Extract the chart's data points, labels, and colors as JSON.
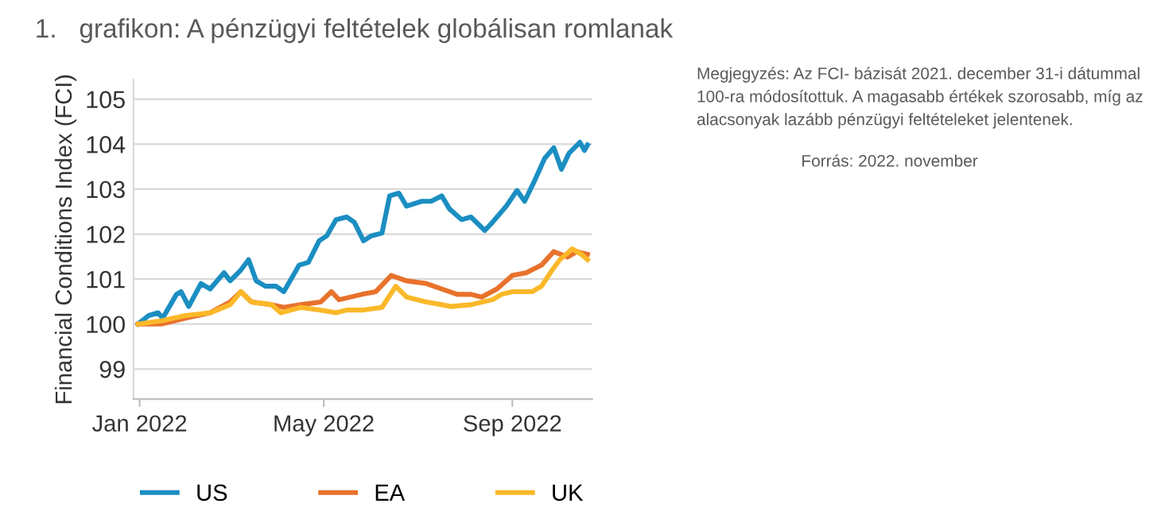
{
  "chart_data": {
    "type": "line",
    "title": "1.   grafikon: A pénzügyi feltételek globálisan romlanak",
    "ylabel": "Financial Conditions Index (FCI)",
    "annotations": [
      "Megjegyzés: Az FCI- bázisát 2021. december 31-i dátummal 100-ra módosítottuk. A magasabb értékek szorosabb, míg az alacsonyak lazább pénzügyi feltételeket jelentenek.",
      "Forrás: 2022. november"
    ],
    "xlim": [
      "2021-12-28",
      "2022-10-23"
    ],
    "xticks": [
      {
        "value": "2022-01-01",
        "label": "Jan 2022"
      },
      {
        "value": "2022-05-01",
        "label": "May 2022"
      },
      {
        "value": "2022-09-01",
        "label": "Sep 2022"
      }
    ],
    "ylim": [
      98.33,
      105.43
    ],
    "yticks": [
      99,
      100,
      101,
      102,
      103,
      104,
      105
    ],
    "grid": "y",
    "legend": "bottom",
    "series": [
      {
        "name": "US",
        "color": "#1b8ec2",
        "x": [
          "2021-12-31",
          "2022-01-07",
          "2022-01-13",
          "2022-01-16",
          "2022-01-25",
          "2022-01-28",
          "2022-02-02",
          "2022-02-10",
          "2022-02-16",
          "2022-02-25",
          "2022-03-01",
          "2022-03-08",
          "2022-03-13",
          "2022-03-18",
          "2022-03-24",
          "2022-03-31",
          "2022-04-05",
          "2022-04-15",
          "2022-04-21",
          "2022-04-28",
          "2022-05-03",
          "2022-05-09",
          "2022-05-16",
          "2022-05-21",
          "2022-05-27",
          "2022-06-01",
          "2022-06-08",
          "2022-06-13",
          "2022-06-19",
          "2022-06-24",
          "2022-07-04",
          "2022-07-10",
          "2022-07-17",
          "2022-07-22",
          "2022-07-30",
          "2022-08-05",
          "2022-08-14",
          "2022-08-19",
          "2022-08-28",
          "2022-09-04",
          "2022-09-09",
          "2022-09-15",
          "2022-09-22",
          "2022-09-28",
          "2022-10-03",
          "2022-10-08",
          "2022-10-15",
          "2022-10-18",
          "2022-10-20"
        ],
        "values": [
          100.0,
          100.19,
          100.25,
          100.13,
          100.66,
          100.72,
          100.39,
          100.9,
          100.78,
          101.14,
          100.96,
          101.2,
          101.43,
          100.96,
          100.84,
          100.84,
          100.72,
          101.31,
          101.37,
          101.85,
          101.96,
          102.32,
          102.38,
          102.26,
          101.85,
          101.96,
          102.02,
          102.85,
          102.91,
          102.62,
          102.73,
          102.73,
          102.85,
          102.56,
          102.32,
          102.38,
          102.08,
          102.26,
          102.62,
          102.97,
          102.73,
          103.15,
          103.68,
          103.92,
          103.44,
          103.8,
          104.04,
          103.86,
          103.98
        ]
      },
      {
        "name": "EA",
        "color": "#e8722c",
        "x": [
          "2021-12-31",
          "2022-01-15",
          "2022-01-31",
          "2022-02-16",
          "2022-03-01",
          "2022-03-08",
          "2022-03-15",
          "2022-03-28",
          "2022-04-05",
          "2022-04-16",
          "2022-04-29",
          "2022-05-06",
          "2022-05-11",
          "2022-05-26",
          "2022-06-04",
          "2022-06-14",
          "2022-06-24",
          "2022-07-07",
          "2022-07-17",
          "2022-07-27",
          "2022-08-05",
          "2022-08-12",
          "2022-08-22",
          "2022-09-01",
          "2022-09-10",
          "2022-09-20",
          "2022-09-28",
          "2022-10-07",
          "2022-10-13",
          "2022-10-20"
        ],
        "values": [
          100.0,
          100.0,
          100.13,
          100.25,
          100.49,
          100.72,
          100.49,
          100.43,
          100.37,
          100.43,
          100.49,
          100.72,
          100.54,
          100.66,
          100.72,
          101.08,
          100.96,
          100.9,
          100.78,
          100.66,
          100.66,
          100.6,
          100.78,
          101.08,
          101.14,
          101.31,
          101.61,
          101.49,
          101.61,
          101.55
        ]
      },
      {
        "name": "UK",
        "color": "#fbb829",
        "x": [
          "2021-12-31",
          "2022-01-15",
          "2022-01-31",
          "2022-02-16",
          "2022-03-01",
          "2022-03-08",
          "2022-03-15",
          "2022-03-28",
          "2022-04-03",
          "2022-04-16",
          "2022-04-29",
          "2022-05-09",
          "2022-05-16",
          "2022-05-26",
          "2022-06-08",
          "2022-06-17",
          "2022-06-24",
          "2022-07-07",
          "2022-07-17",
          "2022-07-23",
          "2022-08-05",
          "2022-08-19",
          "2022-08-25",
          "2022-09-01",
          "2022-09-14",
          "2022-09-20",
          "2022-09-27",
          "2022-10-02",
          "2022-10-10",
          "2022-10-16",
          "2022-10-20"
        ],
        "values": [
          100.0,
          100.07,
          100.19,
          100.25,
          100.43,
          100.72,
          100.49,
          100.43,
          100.25,
          100.37,
          100.31,
          100.25,
          100.31,
          100.31,
          100.37,
          100.84,
          100.6,
          100.49,
          100.43,
          100.39,
          100.43,
          100.54,
          100.66,
          100.72,
          100.72,
          100.84,
          101.2,
          101.43,
          101.67,
          101.55,
          101.43
        ]
      }
    ]
  }
}
